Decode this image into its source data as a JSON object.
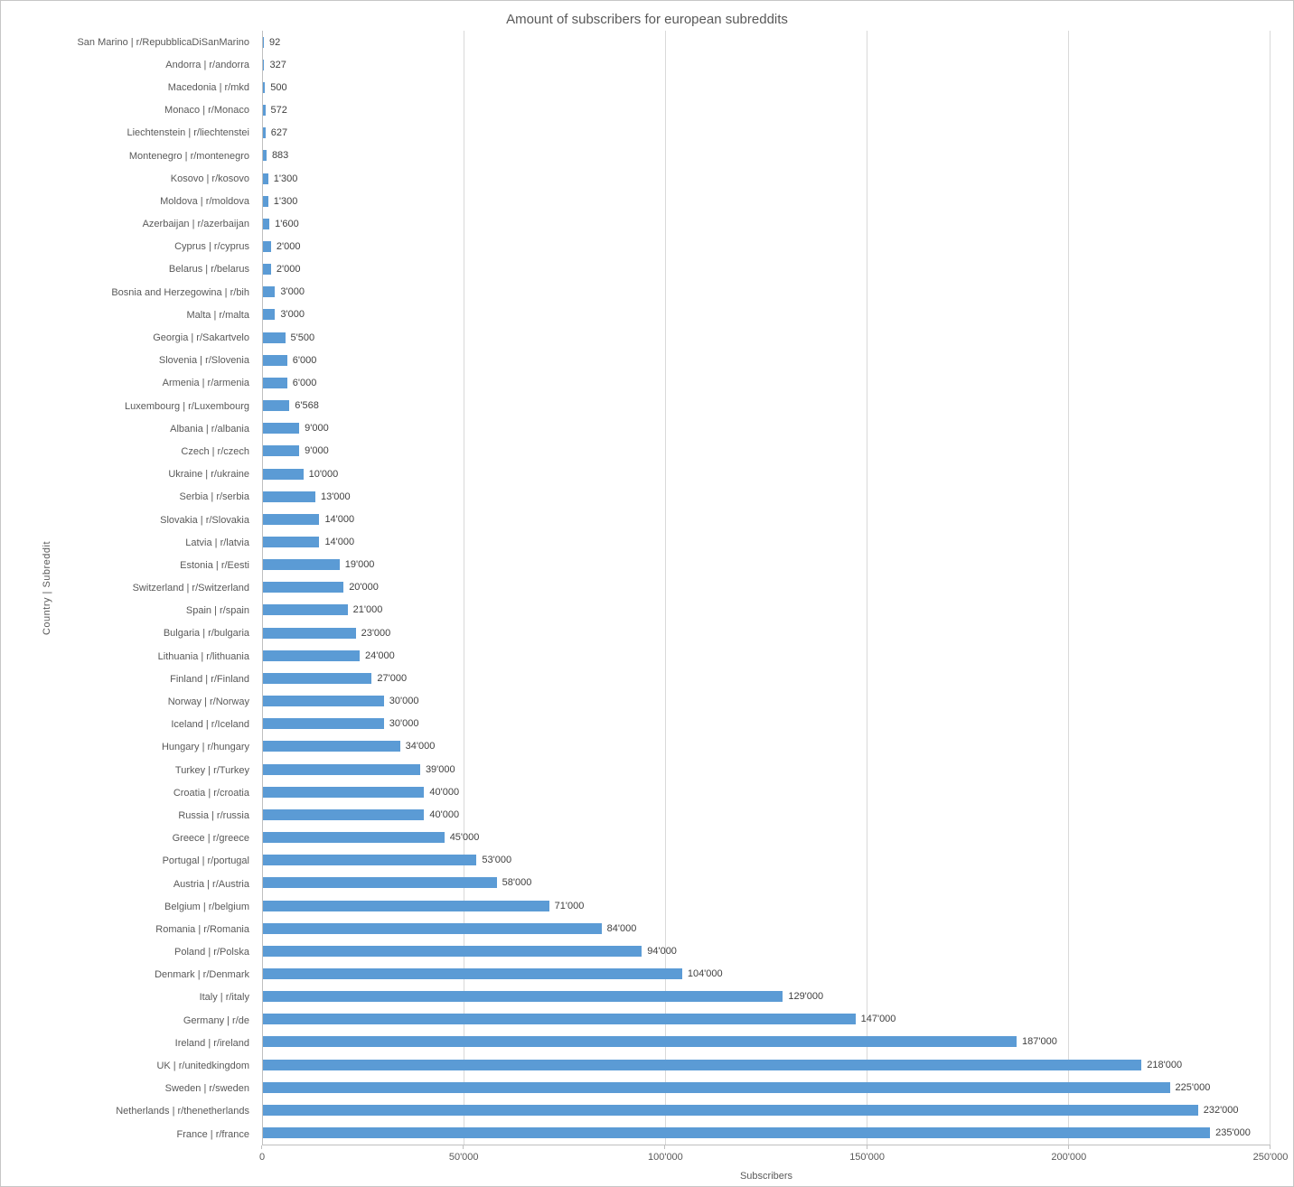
{
  "chart_data": {
    "type": "bar",
    "orientation": "horizontal",
    "title": "Amount of subscribers for european subreddits",
    "xlabel": "Subscribers",
    "ylabel": "Country | Subreddit",
    "xlim": [
      0,
      250000
    ],
    "grid": true,
    "legend": "none",
    "bar_color": "#5B9BD5",
    "gridline_color": "#D9D9D9",
    "axis_color": "#BFBFBF",
    "text_color": "#595959",
    "value_text_color": "#404040",
    "x_ticks": [
      {
        "value": 0,
        "label": "0"
      },
      {
        "value": 50000,
        "label": "50'000"
      },
      {
        "value": 100000,
        "label": "100'000"
      },
      {
        "value": 150000,
        "label": "150'000"
      },
      {
        "value": 200000,
        "label": "200'000"
      },
      {
        "value": 250000,
        "label": "250'000"
      }
    ],
    "categories": [
      "San Marino | r/RepubblicaDiSanMarino",
      "Andorra | r/andorra",
      "Macedonia | r/mkd",
      "Monaco | r/Monaco",
      "Liechtenstein | r/liechtenstei",
      "Montenegro | r/montenegro",
      "Kosovo | r/kosovo",
      "Moldova | r/moldova",
      "Azerbaijan  | r/azerbaijan",
      "Cyprus | r/cyprus",
      "Belarus | r/belarus",
      "Bosnia and Herzegowina | r/bih",
      "Malta | r/malta",
      "Georgia | r/Sakartvelo",
      "Slovenia | r/Slovenia",
      "Armenia | r/armenia",
      "Luxembourg | r/Luxembourg",
      "Albania | r/albania",
      "Czech | r/czech",
      "Ukraine | r/ukraine",
      "Serbia | r/serbia",
      "Slovakia | r/Slovakia",
      "Latvia | r/latvia",
      "Estonia | r/Eesti",
      "Switzerland | r/Switzerland",
      "Spain | r/spain",
      "Bulgaria | r/bulgaria",
      "Lithuania | r/lithuania",
      "Finland | r/Finland",
      "Norway | r/Norway",
      "Iceland | r/Iceland",
      "Hungary | r/hungary",
      "Turkey | r/Turkey",
      "Croatia | r/croatia",
      "Russia | r/russia",
      "Greece | r/greece",
      "Portugal | r/portugal",
      "Austria | r/Austria",
      "Belgium | r/belgium",
      "Romania | r/Romania",
      "Poland | r/Polska",
      "Denmark | r/Denmark",
      "Italy | r/italy",
      "Germany | r/de",
      "Ireland | r/ireland",
      "UK | r/unitedkingdom",
      "Sweden | r/sweden",
      "Netherlands | r/thenetherlands",
      "France | r/france"
    ],
    "values": [
      92,
      327,
      500,
      572,
      627,
      883,
      1300,
      1300,
      1600,
      2000,
      2000,
      3000,
      3000,
      5500,
      6000,
      6000,
      6568,
      9000,
      9000,
      10000,
      13000,
      14000,
      14000,
      19000,
      20000,
      21000,
      23000,
      24000,
      27000,
      30000,
      30000,
      34000,
      39000,
      40000,
      40000,
      45000,
      53000,
      58000,
      71000,
      84000,
      94000,
      104000,
      129000,
      147000,
      187000,
      218000,
      225000,
      232000,
      235000
    ],
    "value_labels": [
      "92",
      "327",
      "500",
      "572",
      "627",
      "883",
      "1'300",
      "1'300",
      "1'600",
      "2'000",
      "2'000",
      "3'000",
      "3'000",
      "5'500",
      "6'000",
      "6'000",
      "6'568",
      "9'000",
      "9'000",
      "10'000",
      "13'000",
      "14'000",
      "14'000",
      "19'000",
      "20'000",
      "21'000",
      "23'000",
      "24'000",
      "27'000",
      "30'000",
      "30'000",
      "34'000",
      "39'000",
      "40'000",
      "40'000",
      "45'000",
      "53'000",
      "58'000",
      "71'000",
      "84'000",
      "94'000",
      "104'000",
      "129'000",
      "147'000",
      "187'000",
      "218'000",
      "225'000",
      "232'000",
      "235'000"
    ]
  }
}
